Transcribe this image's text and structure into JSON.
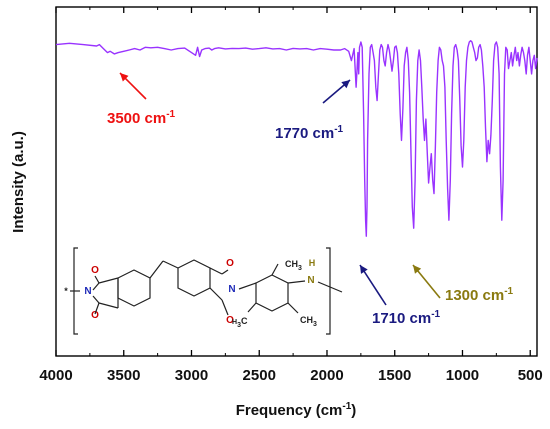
{
  "chart_data": {
    "type": "line",
    "xlabel": "Frequency (cm",
    "xlabel_sup": "-1",
    "xlabel_tail": ")",
    "ylabel": "Intensity (a.u.)",
    "xlim": [
      4000,
      450
    ],
    "ylim": [
      0,
      1
    ],
    "x_ticks": [
      4000,
      3500,
      3000,
      2500,
      2000,
      1500,
      1000,
      500
    ],
    "x_tick_labels": [
      "4000",
      "3500",
      "3000",
      "2500",
      "2000",
      "1500",
      "1000",
      "500"
    ],
    "series": [
      {
        "color": "#9933ff",
        "x": [
          4000,
          3900,
          3800,
          3700,
          3680,
          3650,
          3620,
          3600,
          3570,
          3540,
          3500,
          3460,
          3420,
          3380,
          3340,
          3300,
          3250,
          3200,
          3150,
          3100,
          3050,
          3000,
          2970,
          2955,
          2940,
          2925,
          2900,
          2870,
          2850,
          2830,
          2800,
          2750,
          2700,
          2650,
          2600,
          2550,
          2500,
          2450,
          2400,
          2350,
          2300,
          2250,
          2200,
          2150,
          2100,
          2050,
          2000,
          1950,
          1900,
          1870,
          1840,
          1820,
          1800,
          1785,
          1778,
          1772,
          1766,
          1760,
          1750,
          1740,
          1730,
          1722,
          1715,
          1710,
          1705,
          1700,
          1690,
          1680,
          1670,
          1660,
          1650,
          1640,
          1630,
          1620,
          1610,
          1600,
          1590,
          1580,
          1570,
          1560,
          1550,
          1540,
          1530,
          1520,
          1510,
          1500,
          1490,
          1480,
          1470,
          1460,
          1450,
          1440,
          1430,
          1420,
          1410,
          1400,
          1390,
          1380,
          1370,
          1360,
          1350,
          1340,
          1330,
          1320,
          1310,
          1300,
          1290,
          1280,
          1270,
          1260,
          1250,
          1240,
          1230,
          1220,
          1210,
          1200,
          1190,
          1180,
          1170,
          1160,
          1150,
          1140,
          1130,
          1120,
          1110,
          1100,
          1090,
          1080,
          1070,
          1060,
          1050,
          1040,
          1030,
          1020,
          1010,
          1000,
          990,
          980,
          970,
          960,
          950,
          940,
          930,
          920,
          910,
          900,
          890,
          880,
          870,
          860,
          850,
          840,
          830,
          820,
          810,
          800,
          790,
          780,
          770,
          760,
          750,
          740,
          730,
          720,
          710,
          700,
          690,
          680,
          670,
          660,
          650,
          640,
          630,
          620,
          610,
          600,
          590,
          580,
          570,
          560,
          550,
          540,
          530,
          520,
          510,
          500,
          490,
          480,
          470,
          460,
          450
        ],
        "y": [
          0.96,
          0.965,
          0.96,
          0.955,
          0.96,
          0.945,
          0.93,
          0.935,
          0.925,
          0.93,
          0.935,
          0.94,
          0.945,
          0.94,
          0.95,
          0.948,
          0.95,
          0.945,
          0.94,
          0.945,
          0.947,
          0.93,
          0.92,
          0.95,
          0.915,
          0.94,
          0.945,
          0.947,
          0.94,
          0.945,
          0.948,
          0.944,
          0.946,
          0.945,
          0.947,
          0.943,
          0.945,
          0.948,
          0.944,
          0.945,
          0.94,
          0.946,
          0.944,
          0.945,
          0.94,
          0.945,
          0.943,
          0.94,
          0.94,
          0.945,
          0.935,
          0.9,
          0.945,
          0.8,
          0.87,
          0.93,
          0.85,
          0.95,
          0.97,
          0.95,
          0.7,
          0.45,
          0.3,
          0.24,
          0.35,
          0.6,
          0.85,
          0.95,
          0.96,
          0.93,
          0.9,
          0.8,
          0.75,
          0.85,
          0.94,
          0.96,
          0.95,
          0.9,
          0.88,
          0.93,
          0.96,
          0.94,
          0.9,
          0.86,
          0.9,
          0.95,
          0.955,
          0.93,
          0.85,
          0.7,
          0.6,
          0.72,
          0.88,
          0.93,
          0.95,
          0.9,
          0.78,
          0.55,
          0.35,
          0.27,
          0.45,
          0.75,
          0.9,
          0.94,
          0.9,
          0.8,
          0.68,
          0.6,
          0.68,
          0.55,
          0.44,
          0.5,
          0.55,
          0.45,
          0.4,
          0.58,
          0.78,
          0.9,
          0.95,
          0.94,
          0.9,
          0.88,
          0.8,
          0.6,
          0.42,
          0.3,
          0.45,
          0.7,
          0.88,
          0.95,
          0.96,
          0.94,
          0.9,
          0.75,
          0.58,
          0.5,
          0.6,
          0.8,
          0.9,
          0.95,
          0.97,
          0.975,
          0.97,
          0.95,
          0.93,
          0.9,
          0.91,
          0.95,
          0.96,
          0.94,
          0.88,
          0.8,
          0.65,
          0.52,
          0.6,
          0.55,
          0.62,
          0.75,
          0.9,
          0.96,
          0.97,
          0.95,
          0.85,
          0.5,
          0.3,
          0.45,
          0.85,
          0.95,
          0.94,
          0.87,
          0.9,
          0.93,
          0.88,
          0.92,
          0.95,
          0.9,
          0.93,
          0.88,
          0.92,
          0.95,
          0.93,
          0.9,
          0.85,
          0.92,
          0.95,
          0.9,
          0.85,
          0.9,
          0.92,
          0.87,
          0.91
        ]
      }
    ],
    "annotations": [
      {
        "label": "3500 cm",
        "sup": "-1",
        "color": "#ee1111"
      },
      {
        "label": "1770 cm",
        "sup": "-1",
        "color": "#1a1a80"
      },
      {
        "label": "1710 cm",
        "sup": "-1",
        "color": "#1a1a80"
      },
      {
        "label": "1300 cm",
        "sup": "-1",
        "color": "#8a7a10"
      }
    ],
    "structure": {
      "labels": [
        "O",
        "N",
        "O",
        "O",
        "N",
        "O",
        "CH",
        "3",
        "H",
        "N",
        "H",
        "3",
        "C",
        "CH",
        "3",
        "*"
      ],
      "colors": {
        "bond": "#222222",
        "oxygen": "#cc0000",
        "nitrogen": "#1f2bb8",
        "amine": "#8a7a10"
      }
    }
  }
}
